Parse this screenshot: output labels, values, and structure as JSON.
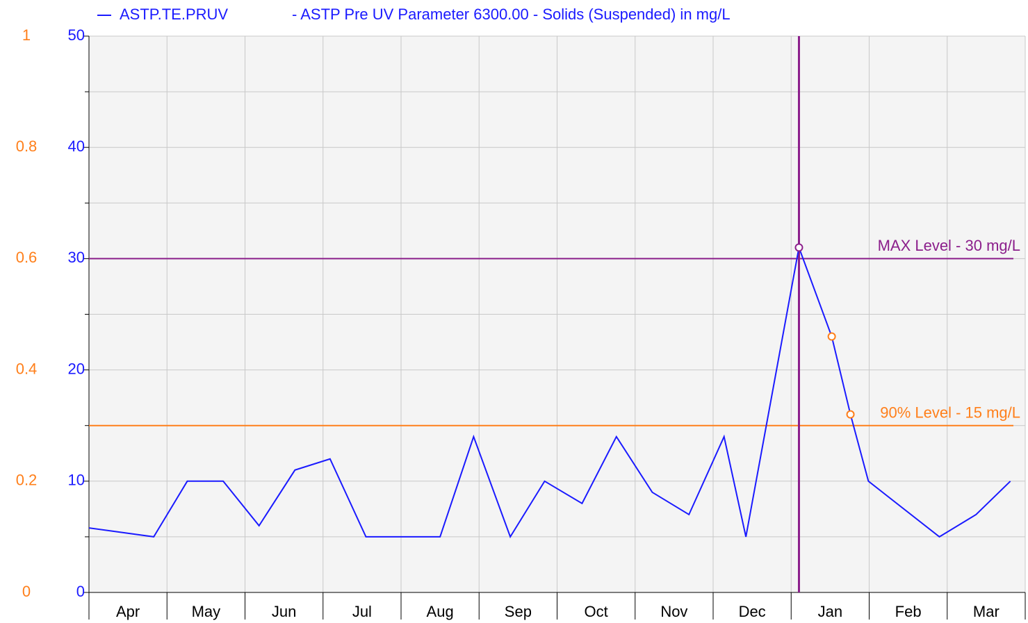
{
  "chart_data": {
    "type": "line",
    "legend_description": "- ASTP Pre UV Parameter 6300.00 - Solids (Suspended) in mg/L",
    "categories": [
      "Apr",
      "May",
      "Jun",
      "Jul",
      "Aug",
      "Sep",
      "Oct",
      "Nov",
      "Dec",
      "Jan",
      "Feb",
      "Mar"
    ],
    "xlim": [
      0,
      12
    ],
    "xticks": [
      0,
      1,
      2,
      3,
      4,
      5,
      6,
      7,
      8,
      9,
      10,
      11,
      12
    ],
    "ylim": [
      0,
      50
    ],
    "yticks": [
      0,
      10,
      20,
      30,
      40,
      50
    ],
    "yminorticks": [
      5,
      15,
      25,
      35,
      45
    ],
    "y2lim": [
      0,
      1
    ],
    "y2ticks": [
      0,
      0.2,
      0.4,
      0.6,
      0.8,
      1
    ],
    "y_color": "#1a1aff",
    "y2_color": "#ff7f1a",
    "grid": true,
    "series": [
      {
        "name": "ASTP.TE.PRUV",
        "color": "#1a1aff",
        "x": [
          0,
          0.83,
          1.26,
          1.72,
          2.18,
          2.64,
          3.09,
          3.55,
          4.01,
          4.5,
          4.93,
          5.4,
          5.84,
          6.32,
          6.76,
          7.22,
          7.69,
          8.14,
          8.42,
          9.1,
          9.52,
          9.76,
          9.99,
          10.9,
          11.37,
          11.81
        ],
        "values": [
          5.8,
          5,
          10,
          10,
          6,
          11,
          12,
          5,
          5,
          5,
          14,
          5,
          10,
          8,
          14,
          9,
          7,
          14,
          5,
          31,
          23,
          16,
          10,
          5,
          7,
          10
        ],
        "marker_colors": [
          null,
          null,
          null,
          null,
          null,
          null,
          null,
          null,
          null,
          null,
          null,
          null,
          null,
          null,
          null,
          null,
          null,
          null,
          null,
          "#8b1e8b",
          "#ff7f1a",
          "#ff7f1a",
          null,
          null,
          null,
          null
        ]
      }
    ],
    "reference_lines": [
      {
        "value": 30,
        "label": "MAX Level - 30 mg/L",
        "color": "#8b1e8b"
      },
      {
        "value": 15,
        "label": "90% Level - 15 mg/L",
        "color": "#ff7f1a"
      }
    ],
    "cursor": {
      "x": 9.1,
      "color": "#8b1e8b"
    }
  }
}
